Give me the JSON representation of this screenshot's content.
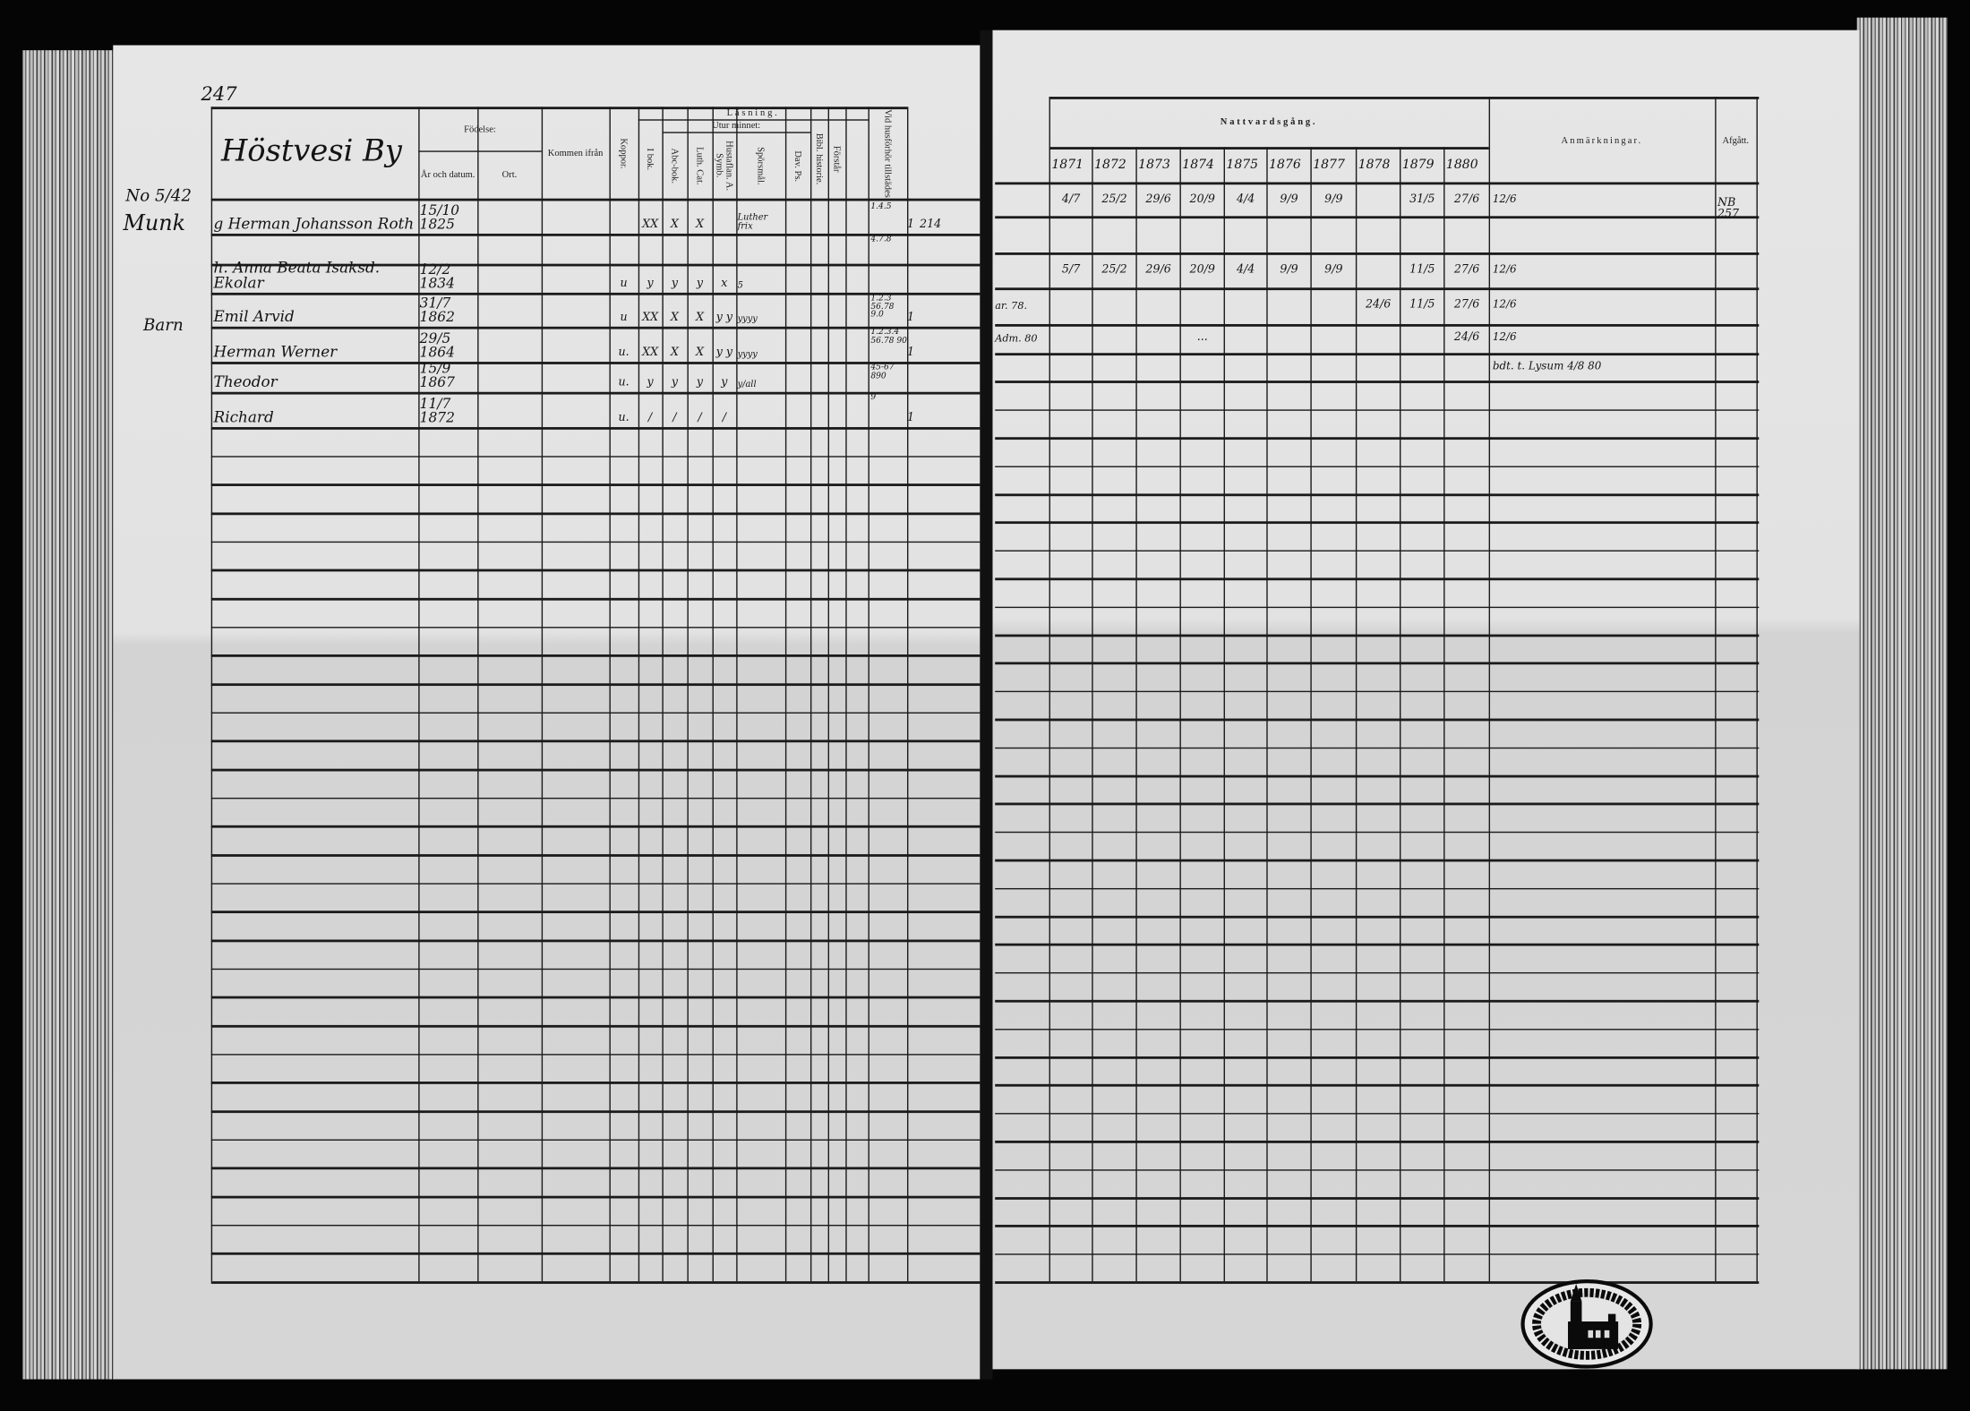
{
  "left_page": {
    "page_number": "247",
    "title": "Höstvesi By",
    "headers": {
      "fodelse": "Födelse:",
      "ar_datum": "År och datum.",
      "ort": "Ort.",
      "kommen": "Kommen ifrån",
      "koppor": "Koppor.",
      "lasning": "Läsning.",
      "i_bok": "I bok.",
      "utur_minnet": "Utur minnet:",
      "abc": "Abc-bok.",
      "luth": "Luth. Cat.",
      "hustaflan": "Hustaflan. A. Symb.",
      "sporsmal": "Spörsmål.",
      "dav": "Dav. Ps.",
      "bibl": "Bibl. historie.",
      "forstar": "Förstår",
      "vid": "Vid husförhör tillstädes"
    },
    "margin_notes": [
      "No 5/42",
      "Munk",
      "Barn"
    ],
    "rows": [
      {
        "name": "g Herman Johansson Roth",
        "birth": "15/10 1825",
        "koppor": "",
        "i_bok": "XX",
        "abc": "X",
        "luth": "X",
        "hustaflan": "",
        "sporsmal": "Luther frix",
        "vid": "1.4.5",
        "mark": "1",
        "extra": "214"
      },
      {
        "name": "",
        "birth": "",
        "koppor": "",
        "i_bok": "",
        "abc": "",
        "luth": "",
        "hustaflan": "",
        "sporsmal": "",
        "vid": "4.7.8",
        "mark": "",
        "extra": ""
      },
      {
        "name": "h. Anna Beata Isaksd. Ekolar",
        "birth": "12/2 1834",
        "koppor": "u",
        "i_bok": "y",
        "abc": "y",
        "luth": "y",
        "hustaflan": "x",
        "sporsmal": "5",
        "vid": "",
        "mark": "",
        "extra": ""
      },
      {
        "name": "Emil Arvid",
        "birth": "31/7 1862",
        "koppor": "u",
        "i_bok": "XX",
        "abc": "X",
        "luth": "X",
        "hustaflan": "y y",
        "sporsmal": "yyyy",
        "vid": "1.2.3 56.78 9.0",
        "mark": "1",
        "extra": ""
      },
      {
        "name": "Herman Werner",
        "birth": "29/5 1864",
        "koppor": "u.",
        "i_bok": "XX",
        "abc": "X",
        "luth": "X",
        "hustaflan": "y y",
        "sporsmal": "yyyy",
        "vid": "1.2.3.4 56.78 90",
        "mark": "1",
        "extra": ""
      },
      {
        "name": "Theodor",
        "birth": "15/9 1867",
        "koppor": "u.",
        "i_bok": "y",
        "abc": "y",
        "luth": "y",
        "hustaflan": "y",
        "sporsmal": "y/all",
        "vid": "45-67 890",
        "mark": "",
        "extra": ""
      },
      {
        "name": "Richard",
        "birth": "11/7 1872",
        "koppor": "u.",
        "i_bok": "/",
        "abc": "/",
        "luth": "/",
        "hustaflan": "/",
        "sporsmal": "",
        "vid": "9",
        "mark": "1",
        "extra": ""
      }
    ]
  },
  "right_page": {
    "headers": {
      "nattvard": "Nattvardsgång.",
      "years": [
        "1871",
        "1872",
        "1873",
        "1874",
        "1875",
        "1876",
        "1877",
        "1878",
        "1879",
        "1880"
      ],
      "anmarkningar": "Anmärkningar.",
      "afgatt": "Afgått."
    },
    "rows": [
      {
        "first": "",
        "dates": [
          "4/7",
          "25/2",
          "29/6",
          "20/9",
          "4/4",
          "9/9",
          "9/9",
          "",
          "31/5",
          "27/6"
        ],
        "anm": "12/6",
        "afgatt": "NB 257"
      },
      {
        "first": "",
        "dates": [
          "",
          "",
          "",
          "",
          "",
          "",
          "",
          "",
          "",
          ""
        ],
        "anm": "",
        "afgatt": ""
      },
      {
        "first": "",
        "dates": [
          "5/7",
          "25/2",
          "29/6",
          "20/9",
          "4/4",
          "9/9",
          "9/9",
          "",
          "11/5",
          "27/6"
        ],
        "anm": "12/6",
        "afgatt": ""
      },
      {
        "first": "ar. 78.",
        "dates": [
          "",
          "",
          "",
          "",
          "",
          "",
          "",
          "24/6",
          "11/5",
          "27/6"
        ],
        "anm": "12/6",
        "afgatt": ""
      },
      {
        "first": "Adm. 80",
        "dates": [
          "",
          "",
          "",
          "...",
          "",
          "",
          "",
          "",
          "",
          "24/6"
        ],
        "anm": "12/6",
        "afgatt": ""
      },
      {
        "first": "",
        "dates": [
          "",
          "",
          "",
          "",
          "",
          "",
          "",
          "",
          "",
          ""
        ],
        "anm": "bdt. t. Lysum 4/8 80",
        "afgatt": ""
      }
    ]
  },
  "colors": {
    "paper": "#e4e4e4",
    "ink": "#1b1b1b",
    "background": "#000000"
  }
}
